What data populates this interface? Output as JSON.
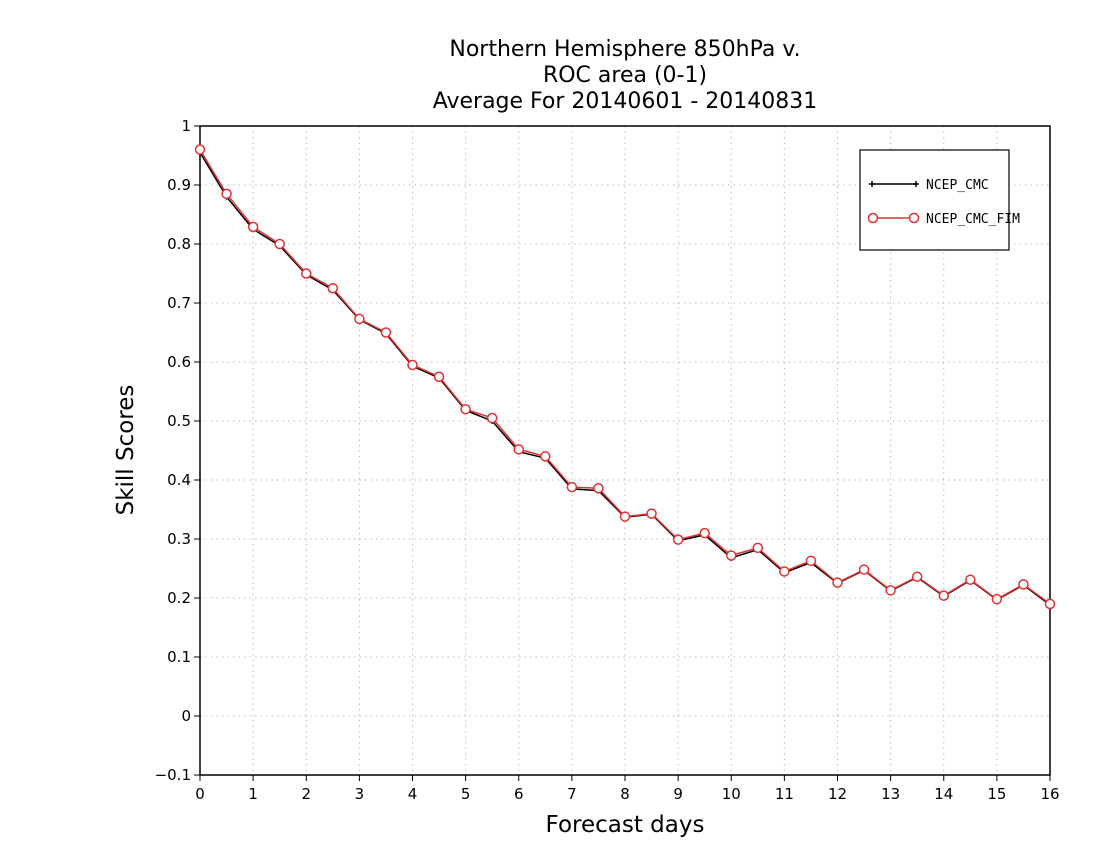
{
  "chart_data": {
    "type": "line",
    "title_lines": [
      "Northern Hemisphere 850hPa v.",
      "ROC area (0-1)",
      "Average For 20140601 - 20140831"
    ],
    "xlabel": "Forecast days",
    "ylabel": "Skill Scores",
    "xlim": [
      0,
      16
    ],
    "ylim": [
      -0.1,
      1
    ],
    "x_ticks": [
      0,
      1,
      2,
      3,
      4,
      5,
      6,
      7,
      8,
      9,
      10,
      11,
      12,
      13,
      14,
      15,
      16
    ],
    "y_ticks": [
      -0.1,
      0,
      0.1,
      0.2,
      0.3,
      0.4,
      0.5,
      0.6,
      0.7,
      0.8,
      0.9,
      1
    ],
    "grid": true,
    "legend_position": "top-right",
    "x": [
      0,
      0.5,
      1,
      1.5,
      2,
      2.5,
      3,
      3.5,
      4,
      4.5,
      5,
      5.5,
      6,
      6.5,
      7,
      7.5,
      8,
      8.5,
      9,
      9.5,
      10,
      10.5,
      11,
      11.5,
      12,
      12.5,
      13,
      13.5,
      14,
      14.5,
      15,
      15.5,
      16
    ],
    "series": [
      {
        "name": "NCEP_CMC",
        "color": "#000000",
        "marker": "plus",
        "values": [
          0.955,
          0.88,
          0.825,
          0.797,
          0.748,
          0.722,
          0.672,
          0.648,
          0.593,
          0.573,
          0.518,
          0.5,
          0.448,
          0.437,
          0.385,
          0.382,
          0.337,
          0.342,
          0.297,
          0.307,
          0.268,
          0.282,
          0.243,
          0.26,
          0.225,
          0.247,
          0.212,
          0.235,
          0.203,
          0.23,
          0.197,
          0.222,
          0.188
        ]
      },
      {
        "name": "NCEP_CMC_FIM",
        "color": "#e23030",
        "marker": "circle",
        "values": [
          0.96,
          0.885,
          0.829,
          0.8,
          0.75,
          0.725,
          0.673,
          0.65,
          0.595,
          0.575,
          0.52,
          0.505,
          0.452,
          0.44,
          0.388,
          0.386,
          0.338,
          0.343,
          0.299,
          0.31,
          0.272,
          0.285,
          0.245,
          0.263,
          0.226,
          0.248,
          0.213,
          0.236,
          0.204,
          0.231,
          0.198,
          0.223,
          0.19
        ]
      }
    ]
  }
}
